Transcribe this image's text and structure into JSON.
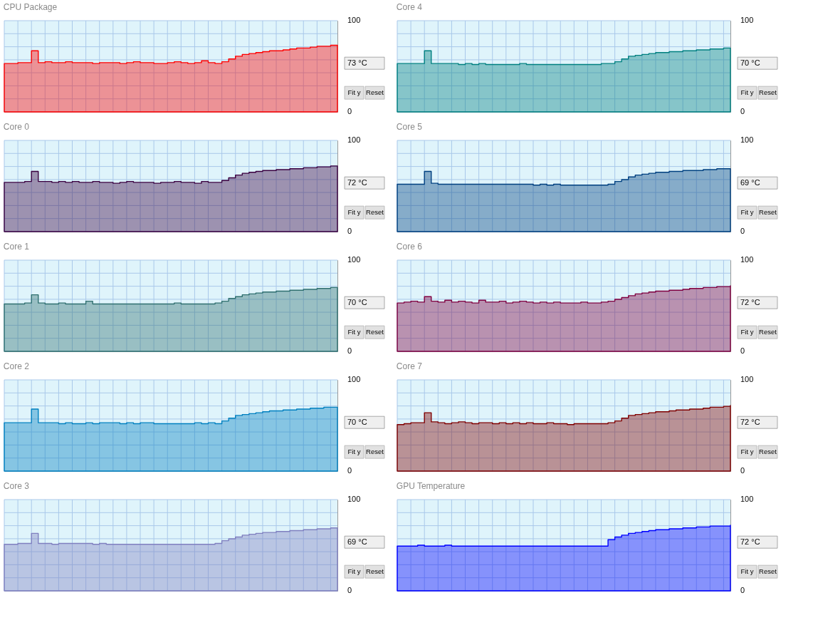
{
  "chart_data": [
    {
      "type": "area",
      "title": "CPU Package",
      "categories": [
        null,
        null,
        null,
        null,
        null,
        null,
        null,
        null,
        null,
        null,
        null,
        null,
        null,
        null,
        null,
        null,
        null,
        null,
        null,
        null,
        null,
        null,
        null,
        null,
        null,
        null,
        null,
        null,
        null,
        null,
        null,
        null,
        null,
        null,
        null,
        null,
        null,
        null,
        null,
        null,
        null,
        null,
        null,
        null,
        null,
        null,
        null,
        null,
        null,
        null
      ],
      "series": [
        {
          "color": "#ff0000",
          "values": [
            53,
            53,
            54,
            54,
            67,
            54,
            55,
            54,
            54,
            55,
            54,
            54,
            54,
            53,
            54,
            54,
            54,
            53,
            54,
            55,
            54,
            54,
            53,
            53,
            54,
            55,
            54,
            53,
            54,
            56,
            54,
            53,
            55,
            58,
            61,
            63,
            64,
            65,
            66,
            67,
            67,
            68,
            69,
            70,
            70,
            71,
            72,
            72,
            73,
            73
          ]
        }
      ],
      "ylim": [
        0,
        100
      ],
      "yticks": [
        0,
        {
          "value": 14.3,
          "label": null
        },
        {
          "value": 28.6,
          "label": null
        },
        {
          "value": 42.9,
          "label": null
        },
        {
          "value": 57.1,
          "label": null
        },
        {
          "value": 71.4,
          "label": null
        },
        {
          "value": 85.7,
          "label": null
        },
        100
      ],
      "grid": true,
      "tick_labels": "y",
      "annotations": [
        "73 °C",
        "Fit y",
        "Reset"
      ]
    },
    {
      "type": "area",
      "title": "Core 4",
      "categories": [
        null,
        null,
        null,
        null,
        null,
        null,
        null,
        null,
        null,
        null,
        null,
        null,
        null,
        null,
        null,
        null,
        null,
        null,
        null,
        null,
        null,
        null,
        null,
        null,
        null,
        null,
        null,
        null,
        null,
        null,
        null,
        null,
        null,
        null,
        null,
        null,
        null,
        null,
        null,
        null,
        null,
        null,
        null,
        null,
        null,
        null,
        null,
        null,
        null,
        null
      ],
      "series": [
        {
          "color": "#008080",
          "values": [
            53,
            53,
            53,
            53,
            67,
            53,
            53,
            53,
            53,
            52,
            53,
            52,
            53,
            52,
            52,
            52,
            52,
            52,
            53,
            52,
            52,
            52,
            52,
            52,
            52,
            52,
            52,
            52,
            52,
            52,
            53,
            53,
            55,
            58,
            61,
            62,
            63,
            64,
            65,
            65,
            66,
            66,
            67,
            67,
            68,
            68,
            69,
            69,
            70,
            70
          ]
        }
      ],
      "ylim": [
        0,
        100
      ],
      "yticks": [
        0,
        {
          "value": 14.3,
          "label": null
        },
        {
          "value": 28.6,
          "label": null
        },
        {
          "value": 42.9,
          "label": null
        },
        {
          "value": 57.1,
          "label": null
        },
        {
          "value": 71.4,
          "label": null
        },
        {
          "value": 85.7,
          "label": null
        },
        100
      ],
      "grid": true,
      "tick_labels": "y",
      "annotations": [
        "70 °C",
        "Fit y",
        "Reset"
      ]
    },
    {
      "type": "area",
      "title": "Core 0",
      "categories": [
        null,
        null,
        null,
        null,
        null,
        null,
        null,
        null,
        null,
        null,
        null,
        null,
        null,
        null,
        null,
        null,
        null,
        null,
        null,
        null,
        null,
        null,
        null,
        null,
        null,
        null,
        null,
        null,
        null,
        null,
        null,
        null,
        null,
        null,
        null,
        null,
        null,
        null,
        null,
        null,
        null,
        null,
        null,
        null,
        null,
        null,
        null,
        null,
        null,
        null
      ],
      "series": [
        {
          "color": "#3a0040",
          "values": [
            54,
            54,
            54,
            55,
            66,
            55,
            55,
            54,
            55,
            54,
            55,
            54,
            54,
            55,
            54,
            54,
            53,
            54,
            55,
            54,
            54,
            54,
            53,
            54,
            54,
            55,
            54,
            54,
            53,
            55,
            54,
            54,
            56,
            59,
            62,
            64,
            65,
            66,
            67,
            67,
            68,
            68,
            69,
            69,
            70,
            70,
            71,
            71,
            72,
            72
          ]
        }
      ],
      "ylim": [
        0,
        100
      ],
      "yticks": [
        0,
        {
          "value": 14.3,
          "label": null
        },
        {
          "value": 28.6,
          "label": null
        },
        {
          "value": 42.9,
          "label": null
        },
        {
          "value": 57.1,
          "label": null
        },
        {
          "value": 71.4,
          "label": null
        },
        {
          "value": 85.7,
          "label": null
        },
        100
      ],
      "grid": true,
      "tick_labels": "y",
      "annotations": [
        "72 °C",
        "Fit y",
        "Reset"
      ]
    },
    {
      "type": "area",
      "title": "Core 5",
      "categories": [
        null,
        null,
        null,
        null,
        null,
        null,
        null,
        null,
        null,
        null,
        null,
        null,
        null,
        null,
        null,
        null,
        null,
        null,
        null,
        null,
        null,
        null,
        null,
        null,
        null,
        null,
        null,
        null,
        null,
        null,
        null,
        null,
        null,
        null,
        null,
        null,
        null,
        null,
        null,
        null,
        null,
        null,
        null,
        null,
        null,
        null,
        null,
        null,
        null,
        null
      ],
      "series": [
        {
          "color": "#004080",
          "values": [
            52,
            52,
            52,
            52,
            66,
            53,
            52,
            52,
            52,
            52,
            52,
            52,
            52,
            52,
            52,
            52,
            52,
            52,
            52,
            52,
            51,
            52,
            51,
            52,
            51,
            51,
            51,
            51,
            51,
            51,
            51,
            52,
            55,
            57,
            60,
            62,
            63,
            64,
            65,
            65,
            66,
            66,
            67,
            67,
            67,
            68,
            68,
            69,
            69,
            69
          ]
        }
      ],
      "ylim": [
        0,
        100
      ],
      "yticks": [
        0,
        {
          "value": 14.3,
          "label": null
        },
        {
          "value": 28.6,
          "label": null
        },
        {
          "value": 42.9,
          "label": null
        },
        {
          "value": 57.1,
          "label": null
        },
        {
          "value": 71.4,
          "label": null
        },
        {
          "value": 85.7,
          "label": null
        },
        100
      ],
      "grid": true,
      "tick_labels": "y",
      "annotations": [
        "69 °C",
        "Fit y",
        "Reset"
      ]
    },
    {
      "type": "area",
      "title": "Core 1",
      "categories": [
        null,
        null,
        null,
        null,
        null,
        null,
        null,
        null,
        null,
        null,
        null,
        null,
        null,
        null,
        null,
        null,
        null,
        null,
        null,
        null,
        null,
        null,
        null,
        null,
        null,
        null,
        null,
        null,
        null,
        null,
        null,
        null,
        null,
        null,
        null,
        null,
        null,
        null,
        null,
        null,
        null,
        null,
        null,
        null,
        null,
        null,
        null,
        null,
        null,
        null
      ],
      "series": [
        {
          "color": "#307070",
          "values": [
            52,
            52,
            52,
            53,
            62,
            53,
            52,
            52,
            53,
            52,
            52,
            52,
            55,
            52,
            52,
            52,
            52,
            52,
            52,
            52,
            52,
            52,
            52,
            52,
            52,
            53,
            52,
            52,
            52,
            52,
            52,
            53,
            55,
            58,
            60,
            62,
            63,
            64,
            65,
            65,
            66,
            66,
            67,
            67,
            68,
            68,
            69,
            69,
            70,
            70
          ]
        }
      ],
      "ylim": [
        0,
        100
      ],
      "yticks": [
        0,
        {
          "value": 14.3,
          "label": null
        },
        {
          "value": 28.6,
          "label": null
        },
        {
          "value": 42.9,
          "label": null
        },
        {
          "value": 57.1,
          "label": null
        },
        {
          "value": 71.4,
          "label": null
        },
        {
          "value": 85.7,
          "label": null
        },
        100
      ],
      "grid": true,
      "tick_labels": "y",
      "annotations": [
        "70 °C",
        "Fit y",
        "Reset"
      ]
    },
    {
      "type": "area",
      "title": "Core 6",
      "categories": [
        null,
        null,
        null,
        null,
        null,
        null,
        null,
        null,
        null,
        null,
        null,
        null,
        null,
        null,
        null,
        null,
        null,
        null,
        null,
        null,
        null,
        null,
        null,
        null,
        null,
        null,
        null,
        null,
        null,
        null,
        null,
        null,
        null,
        null,
        null,
        null,
        null,
        null,
        null,
        null,
        null,
        null,
        null,
        null,
        null,
        null,
        null,
        null,
        null,
        null
      ],
      "series": [
        {
          "color": "#800040",
          "values": [
            53,
            54,
            55,
            54,
            60,
            55,
            54,
            56,
            54,
            55,
            54,
            53,
            56,
            54,
            54,
            55,
            53,
            54,
            55,
            54,
            53,
            54,
            53,
            54,
            53,
            53,
            53,
            54,
            53,
            53,
            54,
            55,
            57,
            59,
            61,
            63,
            64,
            65,
            66,
            66,
            67,
            67,
            68,
            69,
            69,
            70,
            70,
            71,
            71,
            72
          ]
        }
      ],
      "ylim": [
        0,
        100
      ],
      "yticks": [
        0,
        {
          "value": 14.3,
          "label": null
        },
        {
          "value": 28.6,
          "label": null
        },
        {
          "value": 42.9,
          "label": null
        },
        {
          "value": 57.1,
          "label": null
        },
        {
          "value": 71.4,
          "label": null
        },
        {
          "value": 85.7,
          "label": null
        },
        100
      ],
      "grid": true,
      "tick_labels": "y",
      "annotations": [
        "72 °C",
        "Fit y",
        "Reset"
      ]
    },
    {
      "type": "area",
      "title": "Core 2",
      "categories": [
        null,
        null,
        null,
        null,
        null,
        null,
        null,
        null,
        null,
        null,
        null,
        null,
        null,
        null,
        null,
        null,
        null,
        null,
        null,
        null,
        null,
        null,
        null,
        null,
        null,
        null,
        null,
        null,
        null,
        null,
        null,
        null,
        null,
        null,
        null,
        null,
        null,
        null,
        null,
        null,
        null,
        null,
        null,
        null,
        null,
        null,
        null,
        null,
        null,
        null
      ],
      "series": [
        {
          "color": "#0080c0",
          "values": [
            53,
            53,
            53,
            53,
            68,
            53,
            53,
            53,
            52,
            53,
            52,
            52,
            53,
            52,
            53,
            53,
            53,
            52,
            53,
            52,
            53,
            53,
            52,
            52,
            52,
            52,
            52,
            52,
            53,
            52,
            53,
            52,
            55,
            58,
            61,
            62,
            63,
            64,
            65,
            66,
            66,
            67,
            67,
            68,
            68,
            69,
            69,
            70,
            70,
            70
          ]
        }
      ],
      "ylim": [
        0,
        100
      ],
      "yticks": [
        0,
        {
          "value": 14.3,
          "label": null
        },
        {
          "value": 28.6,
          "label": null
        },
        {
          "value": 42.9,
          "label": null
        },
        {
          "value": 57.1,
          "label": null
        },
        {
          "value": 71.4,
          "label": null
        },
        {
          "value": 85.7,
          "label": null
        },
        100
      ],
      "grid": true,
      "tick_labels": "y",
      "annotations": [
        "70 °C",
        "Fit y",
        "Reset"
      ]
    },
    {
      "type": "area",
      "title": "Core 7",
      "categories": [
        null,
        null,
        null,
        null,
        null,
        null,
        null,
        null,
        null,
        null,
        null,
        null,
        null,
        null,
        null,
        null,
        null,
        null,
        null,
        null,
        null,
        null,
        null,
        null,
        null,
        null,
        null,
        null,
        null,
        null,
        null,
        null,
        null,
        null,
        null,
        null,
        null,
        null,
        null,
        null,
        null,
        null,
        null,
        null,
        null,
        null,
        null,
        null,
        null,
        null
      ],
      "series": [
        {
          "color": "#800000",
          "values": [
            51,
            52,
            53,
            53,
            64,
            54,
            53,
            52,
            53,
            54,
            53,
            52,
            53,
            53,
            52,
            53,
            52,
            53,
            52,
            53,
            52,
            52,
            53,
            52,
            52,
            51,
            52,
            52,
            52,
            52,
            52,
            53,
            55,
            58,
            61,
            62,
            63,
            64,
            65,
            65,
            66,
            67,
            67,
            68,
            68,
            69,
            70,
            70,
            71,
            72
          ]
        }
      ],
      "ylim": [
        0,
        100
      ],
      "yticks": [
        0,
        {
          "value": 14.3,
          "label": null
        },
        {
          "value": 28.6,
          "label": null
        },
        {
          "value": 42.9,
          "label": null
        },
        {
          "value": 57.1,
          "label": null
        },
        {
          "value": 71.4,
          "label": null
        },
        {
          "value": 85.7,
          "label": null
        },
        100
      ],
      "grid": true,
      "tick_labels": "y",
      "annotations": [
        "72 °C",
        "Fit y",
        "Reset"
      ]
    },
    {
      "type": "area",
      "title": "Core 3",
      "categories": [
        null,
        null,
        null,
        null,
        null,
        null,
        null,
        null,
        null,
        null,
        null,
        null,
        null,
        null,
        null,
        null,
        null,
        null,
        null,
        null,
        null,
        null,
        null,
        null,
        null,
        null,
        null,
        null,
        null,
        null,
        null,
        null,
        null,
        null,
        null,
        null,
        null,
        null,
        null,
        null,
        null,
        null,
        null,
        null,
        null,
        null,
        null,
        null,
        null,
        null
      ],
      "series": [
        {
          "color": "#8080c0",
          "values": [
            51,
            51,
            52,
            52,
            63,
            52,
            52,
            51,
            52,
            52,
            52,
            52,
            52,
            51,
            52,
            51,
            51,
            51,
            51,
            51,
            51,
            51,
            51,
            51,
            51,
            51,
            51,
            51,
            51,
            51,
            51,
            52,
            55,
            57,
            59,
            61,
            62,
            63,
            64,
            64,
            65,
            65,
            66,
            66,
            67,
            67,
            68,
            68,
            69,
            69
          ]
        }
      ],
      "ylim": [
        0,
        100
      ],
      "yticks": [
        0,
        {
          "value": 14.3,
          "label": null
        },
        {
          "value": 28.6,
          "label": null
        },
        {
          "value": 42.9,
          "label": null
        },
        {
          "value": 57.1,
          "label": null
        },
        {
          "value": 71.4,
          "label": null
        },
        {
          "value": 85.7,
          "label": null
        },
        100
      ],
      "grid": true,
      "tick_labels": "y",
      "annotations": [
        "69 °C",
        "Fit y",
        "Reset"
      ]
    },
    {
      "type": "area",
      "title": "GPU Temperature",
      "categories": [
        null,
        null,
        null,
        null,
        null,
        null,
        null,
        null,
        null,
        null,
        null,
        null,
        null,
        null,
        null,
        null,
        null,
        null,
        null,
        null,
        null,
        null,
        null,
        null,
        null,
        null,
        null,
        null,
        null,
        null,
        null,
        null,
        null,
        null,
        null,
        null,
        null,
        null,
        null,
        null,
        null,
        null,
        null,
        null,
        null,
        null,
        null,
        null,
        null,
        null
      ],
      "series": [
        {
          "color": "#0000ff",
          "values": [
            49,
            49,
            49,
            50,
            49,
            49,
            49,
            50,
            49,
            49,
            49,
            49,
            49,
            49,
            49,
            49,
            49,
            49,
            49,
            49,
            49,
            49,
            49,
            49,
            49,
            49,
            49,
            49,
            49,
            49,
            49,
            56,
            59,
            61,
            63,
            64,
            65,
            66,
            67,
            67,
            68,
            68,
            69,
            69,
            70,
            70,
            71,
            71,
            71,
            72
          ]
        }
      ],
      "ylim": [
        0,
        100
      ],
      "yticks": [
        0,
        {
          "value": 14.3,
          "label": null
        },
        {
          "value": 28.6,
          "label": null
        },
        {
          "value": 42.9,
          "label": null
        },
        {
          "value": 57.1,
          "label": null
        },
        {
          "value": 71.4,
          "label": null
        },
        {
          "value": 85.7,
          "label": null
        },
        100
      ],
      "grid": true,
      "tick_labels": "y",
      "annotations": [
        "72 °C",
        "Fit y",
        "Reset"
      ]
    }
  ]
}
